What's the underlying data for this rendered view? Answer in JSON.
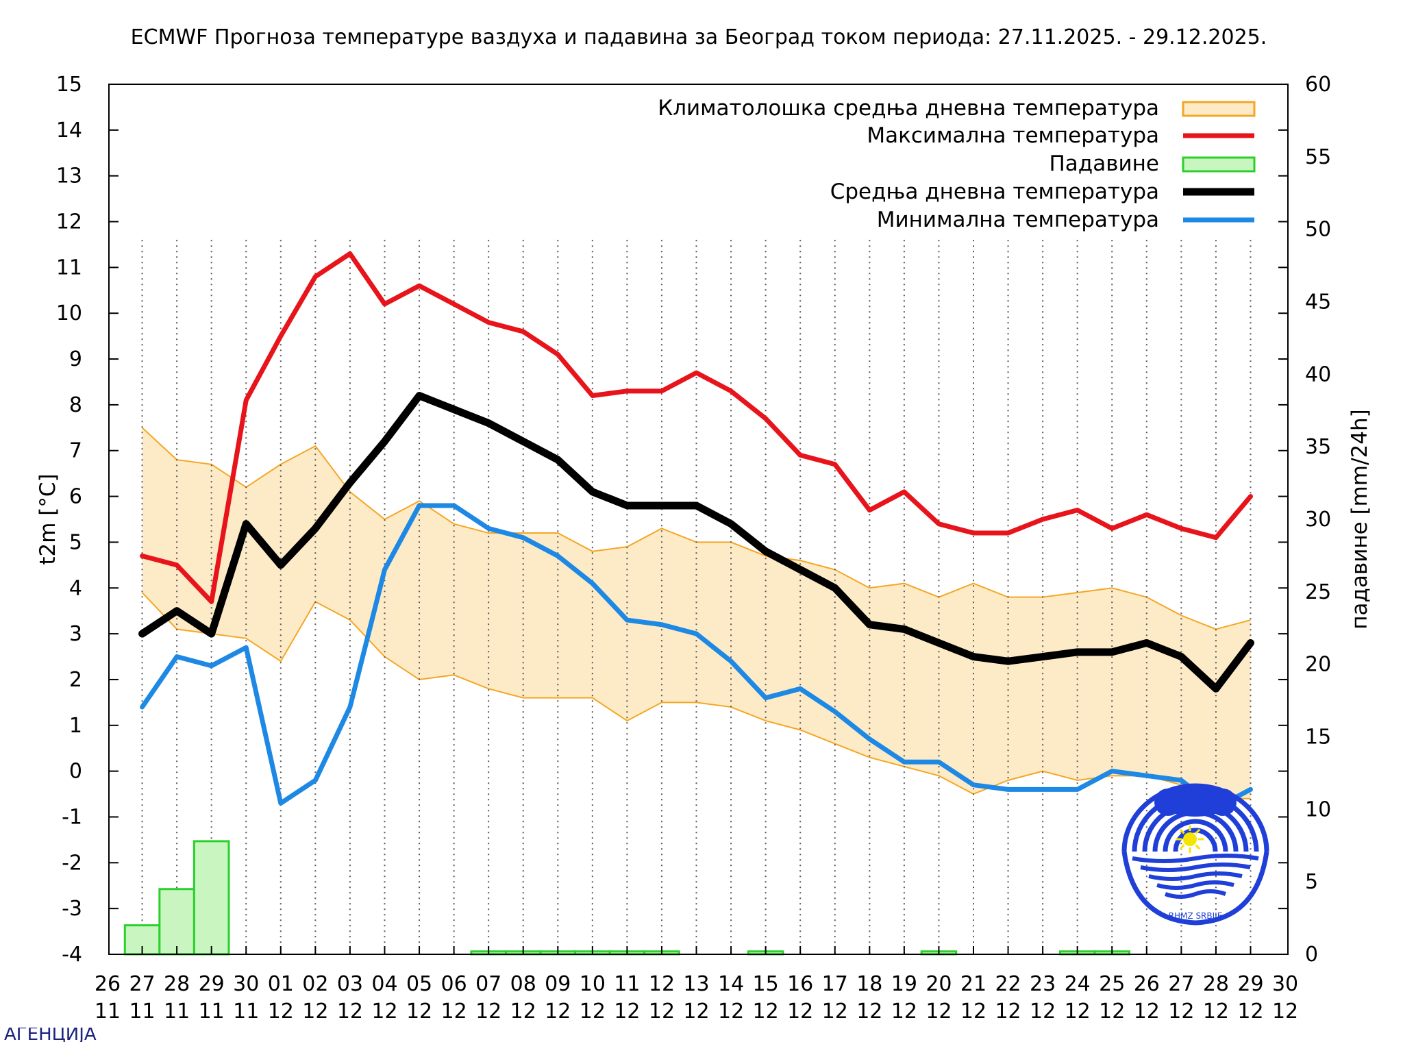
{
  "chart_data": {
    "type": "line",
    "title": "ECMWF Прогноза температуре ваздуха и падавина за Београд током периода: 27.11.2025. - 29.12.2025.",
    "ylabel": "t2m [°C]",
    "y2label": "падавине [mm/24h]",
    "ylim": [
      -4,
      15
    ],
    "y2lim": [
      0,
      60
    ],
    "y_ticks": [
      "15",
      "14",
      "13",
      "12",
      "11",
      "10",
      "9",
      "8",
      "7",
      "6",
      "5",
      "4",
      "3",
      "2",
      "1",
      "0",
      "-1",
      "-2",
      "-3",
      "-4"
    ],
    "y2_ticks": [
      "60",
      "55",
      "50",
      "45",
      "40",
      "35",
      "30",
      "25",
      "20",
      "15",
      "10",
      "5",
      "0"
    ],
    "x_ticks": [
      {
        "day": "26",
        "month": "11"
      },
      {
        "day": "27",
        "month": "11"
      },
      {
        "day": "28",
        "month": "11"
      },
      {
        "day": "29",
        "month": "11"
      },
      {
        "day": "30",
        "month": "11"
      },
      {
        "day": "01",
        "month": "12"
      },
      {
        "day": "02",
        "month": "12"
      },
      {
        "day": "03",
        "month": "12"
      },
      {
        "day": "04",
        "month": "12"
      },
      {
        "day": "05",
        "month": "12"
      },
      {
        "day": "06",
        "month": "12"
      },
      {
        "day": "07",
        "month": "12"
      },
      {
        "day": "08",
        "month": "12"
      },
      {
        "day": "09",
        "month": "12"
      },
      {
        "day": "10",
        "month": "12"
      },
      {
        "day": "11",
        "month": "12"
      },
      {
        "day": "12",
        "month": "12"
      },
      {
        "day": "13",
        "month": "12"
      },
      {
        "day": "14",
        "month": "12"
      },
      {
        "day": "15",
        "month": "12"
      },
      {
        "day": "16",
        "month": "12"
      },
      {
        "day": "17",
        "month": "12"
      },
      {
        "day": "18",
        "month": "12"
      },
      {
        "day": "19",
        "month": "12"
      },
      {
        "day": "20",
        "month": "12"
      },
      {
        "day": "21",
        "month": "12"
      },
      {
        "day": "22",
        "month": "12"
      },
      {
        "day": "23",
        "month": "12"
      },
      {
        "day": "24",
        "month": "12"
      },
      {
        "day": "25",
        "month": "12"
      },
      {
        "day": "26",
        "month": "12"
      },
      {
        "day": "27",
        "month": "12"
      },
      {
        "day": "28",
        "month": "12"
      },
      {
        "day": "29",
        "month": "12"
      },
      {
        "day": "30",
        "month": "12"
      }
    ],
    "x": [
      "27.11",
      "28.11",
      "29.11",
      "30.11",
      "01.12",
      "02.12",
      "03.12",
      "04.12",
      "05.12",
      "06.12",
      "07.12",
      "08.12",
      "09.12",
      "10.12",
      "11.12",
      "12.12",
      "13.12",
      "14.12",
      "15.12",
      "16.12",
      "17.12",
      "18.12",
      "19.12",
      "20.12",
      "21.12",
      "22.12",
      "23.12",
      "24.12",
      "25.12",
      "26.12",
      "27.12",
      "28.12",
      "29.12"
    ],
    "legend": {
      "placement": "top-right",
      "entries": [
        {
          "label": "Климатолошка средња дневна температура",
          "color": "#fdebc8",
          "edge": "#f5a623",
          "kind": "band"
        },
        {
          "label": "Максимална температура",
          "color": "#e8141b",
          "kind": "line"
        },
        {
          "label": "Падавине",
          "color": "#c8f5c0",
          "edge": "#2ad12a",
          "kind": "bar"
        },
        {
          "label": "Средња дневна температура",
          "color": "#000000",
          "kind": "line"
        },
        {
          "label": "Минимална температура",
          "color": "#1e88e5",
          "kind": "line"
        }
      ]
    },
    "series": [
      {
        "name": "Максимална температура",
        "color": "#e8141b",
        "width": 7,
        "values": [
          4.7,
          4.5,
          3.7,
          8.1,
          9.5,
          10.8,
          11.3,
          10.2,
          10.6,
          10.2,
          9.8,
          9.6,
          9.1,
          8.2,
          8.3,
          8.3,
          8.7,
          8.3,
          7.7,
          6.9,
          6.7,
          5.7,
          6.1,
          5.4,
          5.2,
          5.2,
          5.5,
          5.7,
          5.3,
          5.6,
          5.3,
          5.1,
          6.0
        ]
      },
      {
        "name": "Средња дневна температура",
        "color": "#000000",
        "width": 11,
        "values": [
          3.0,
          3.5,
          3.0,
          5.4,
          4.5,
          5.3,
          6.3,
          7.2,
          8.2,
          7.9,
          7.6,
          7.2,
          6.8,
          6.1,
          5.8,
          5.8,
          5.8,
          5.4,
          4.8,
          4.4,
          4.0,
          3.2,
          3.1,
          2.8,
          2.5,
          2.4,
          2.5,
          2.6,
          2.6,
          2.8,
          2.5,
          1.8,
          2.8
        ]
      },
      {
        "name": "Минимална температура",
        "color": "#1e88e5",
        "width": 7,
        "values": [
          1.4,
          2.5,
          2.3,
          2.7,
          -0.7,
          -0.2,
          1.4,
          4.4,
          5.8,
          5.8,
          5.3,
          5.1,
          4.7,
          4.1,
          3.3,
          3.2,
          3.0,
          2.4,
          1.6,
          1.8,
          1.3,
          0.7,
          0.2,
          0.2,
          -0.3,
          -0.4,
          -0.4,
          -0.4,
          0.0,
          -0.1,
          -0.2,
          -0.8,
          -0.4
        ]
      }
    ],
    "climatology_band": {
      "upper": [
        7.5,
        6.8,
        6.7,
        6.2,
        6.7,
        7.1,
        6.1,
        5.5,
        5.9,
        5.4,
        5.2,
        5.2,
        5.2,
        4.8,
        4.9,
        5.3,
        5.0,
        5.0,
        4.7,
        4.6,
        4.4,
        4.0,
        4.1,
        3.8,
        4.1,
        3.8,
        3.8,
        3.9,
        4.0,
        3.8,
        3.4,
        3.1,
        3.3
      ],
      "lower": [
        3.9,
        3.1,
        3.0,
        2.9,
        2.4,
        3.7,
        3.3,
        2.5,
        2.0,
        2.1,
        1.8,
        1.6,
        1.6,
        1.6,
        1.1,
        1.5,
        1.5,
        1.4,
        1.1,
        0.9,
        0.6,
        0.3,
        0.1,
        -0.1,
        -0.5,
        -0.2,
        0.0,
        -0.2,
        -0.1,
        -0.1,
        -0.3,
        -0.6,
        -0.6
      ]
    },
    "precipitation_mm": [
      2.0,
      4.5,
      7.8,
      0,
      0,
      0,
      0,
      0,
      0,
      0,
      0.2,
      0.2,
      0.2,
      0.2,
      0.2,
      0.2,
      0,
      0,
      0.2,
      0,
      0,
      0,
      0,
      0.2,
      0,
      0,
      0,
      0.2,
      0.2,
      0,
      0,
      0,
      0
    ],
    "grid": "vertical dotted lines at each day"
  },
  "footer": {
    "text": "АГЕНЦИЈА"
  },
  "logo": {
    "icon": "hydromet-service-logo",
    "caption": "RHMZ SRBIJE"
  }
}
